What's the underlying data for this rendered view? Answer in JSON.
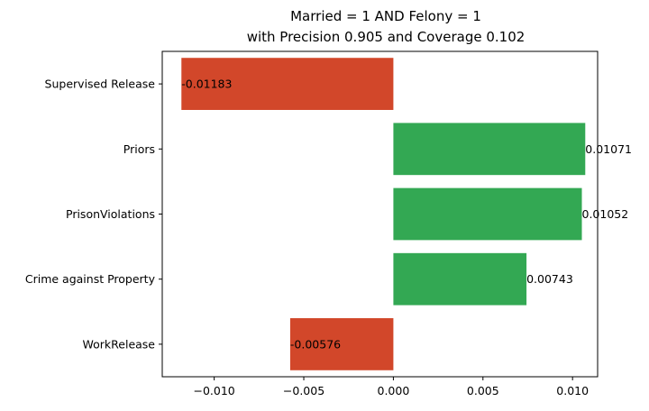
{
  "chart_data": {
    "type": "bar",
    "orientation": "horizontal",
    "title": "Married = 1 AND Felony = 1",
    "subtitle": "with Precision 0.905 and Coverage 0.102",
    "categories": [
      "Supervised Release",
      "Priors",
      "PrisonViolations",
      "Crime against Property",
      "WorkRelease"
    ],
    "values": [
      -0.01183,
      0.01071,
      0.01052,
      0.00743,
      -0.00576
    ],
    "data_labels": [
      "-0.01183",
      "0.01071",
      "0.01052",
      "0.00743",
      "-0.00576"
    ],
    "xticks": [
      -0.01,
      -0.005,
      0.0,
      0.005,
      0.01
    ],
    "xtick_labels": [
      "−0.010",
      "−0.005",
      "0.000",
      "0.005",
      "0.010"
    ],
    "xlim": [
      -0.0129,
      0.0114
    ],
    "xlabel": "",
    "ylabel": "",
    "grid": false,
    "legend": "none",
    "colors": {
      "positive": "#33a853",
      "negative": "#d2472a"
    }
  }
}
